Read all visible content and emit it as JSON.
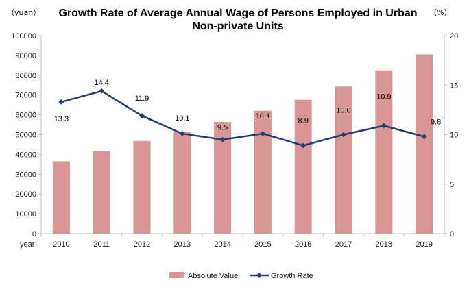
{
  "chart_data": {
    "type": "bar",
    "title_lines": [
      "Growth Rate of Average Annual Wage of Persons Employed in Urban",
      "Non-private Units"
    ],
    "left_unit": "（yuan）",
    "right_unit": "（%）",
    "xlabel": "year",
    "categories": [
      "2010",
      "2011",
      "2012",
      "2013",
      "2014",
      "2015",
      "2016",
      "2017",
      "2018",
      "2019"
    ],
    "left_axis": {
      "ylim": [
        0,
        100000
      ],
      "ticks": [
        "0",
        "10000",
        "20000",
        "30000",
        "40000",
        "50000",
        "60000",
        "70000",
        "80000",
        "90000",
        "100000"
      ]
    },
    "right_axis": {
      "ylim": [
        0,
        20
      ],
      "ticks": [
        "0",
        "5",
        "10",
        "15",
        "20"
      ]
    },
    "series": [
      {
        "name": "Absolute Value",
        "type": "bar",
        "axis": "left",
        "color": "#d99694",
        "values": [
          36539,
          41799,
          46769,
          51483,
          56360,
          62029,
          67569,
          74318,
          82413,
          90501
        ]
      },
      {
        "name": "Growth Rate",
        "type": "line",
        "axis": "right",
        "color": "#1f3f73",
        "values": [
          13.3,
          14.4,
          11.9,
          10.1,
          9.5,
          10.1,
          8.9,
          10.0,
          10.9,
          9.8
        ],
        "labels": [
          "13.3",
          "14.4",
          "11.9",
          "10.1",
          "9.5",
          "10.1",
          "8.9",
          "10.0",
          "10.9",
          "9.8"
        ]
      }
    ],
    "grid": false,
    "legend": "bottom"
  }
}
